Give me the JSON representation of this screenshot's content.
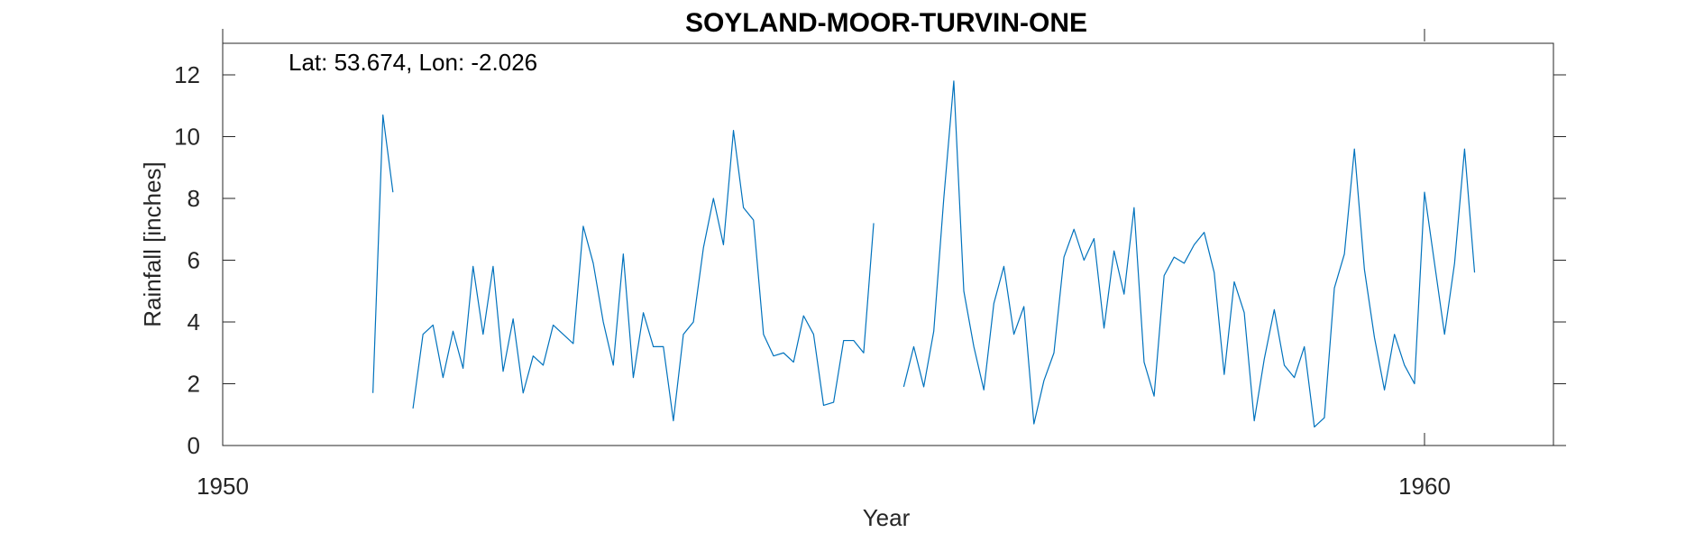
{
  "chart_data": {
    "type": "line",
    "title": "SOYLAND-MOOR-TURVIN-ONE",
    "annotation": "Lat: 53.674, Lon: -2.026",
    "xlabel": "Year",
    "ylabel": "Rainfall [inches]",
    "xlim": [
      1950,
      1961.1
    ],
    "ylim": [
      0,
      13
    ],
    "xticks": [
      1950,
      1960
    ],
    "xtick_labels": [
      "1950",
      "1960"
    ],
    "yticks": [
      0,
      2,
      4,
      6,
      8,
      10,
      12
    ],
    "ytick_labels": [
      "0",
      "2",
      "4",
      "6",
      "8",
      "10",
      "12"
    ],
    "grid": false,
    "box": true,
    "line_color": "#0072BD",
    "start_year_month": [
      1951,
      4
    ],
    "series": [
      {
        "values": [
          1.7,
          10.7,
          8.2,
          null,
          1.2,
          3.6,
          3.9,
          2.2,
          3.7,
          2.5,
          5.8,
          3.6,
          5.8,
          2.4,
          4.1,
          1.7,
          2.9,
          2.6,
          3.9,
          3.6,
          3.3,
          7.1,
          5.9,
          4.0,
          2.6,
          6.2,
          2.2,
          4.3,
          3.2,
          3.2,
          0.8,
          3.6,
          4.0,
          6.4,
          8.0,
          6.5,
          10.2,
          7.7,
          7.3,
          3.6,
          2.9,
          3.0,
          2.7,
          4.2,
          3.6,
          1.3,
          1.4,
          3.4,
          3.4,
          3.0,
          7.2,
          null,
          null,
          1.9,
          3.2,
          1.9,
          3.7,
          8.0,
          11.8,
          5.0,
          3.2,
          1.8,
          4.6,
          5.8,
          3.6,
          4.5,
          0.7,
          2.1,
          3.0,
          6.1,
          7.0,
          6.0,
          6.7,
          3.8,
          6.3,
          4.9,
          7.7,
          2.7,
          1.6,
          5.5,
          6.1,
          5.9,
          6.5,
          6.9,
          5.6,
          2.3,
          5.3,
          4.3,
          0.8,
          2.8,
          4.4,
          2.6,
          2.2,
          3.2,
          0.6,
          0.9,
          5.1,
          6.2,
          9.6,
          5.7,
          3.5,
          1.8,
          3.6,
          2.6,
          2.0,
          8.2,
          5.9,
          3.6,
          5.9,
          9.6,
          5.6
        ]
      }
    ]
  }
}
